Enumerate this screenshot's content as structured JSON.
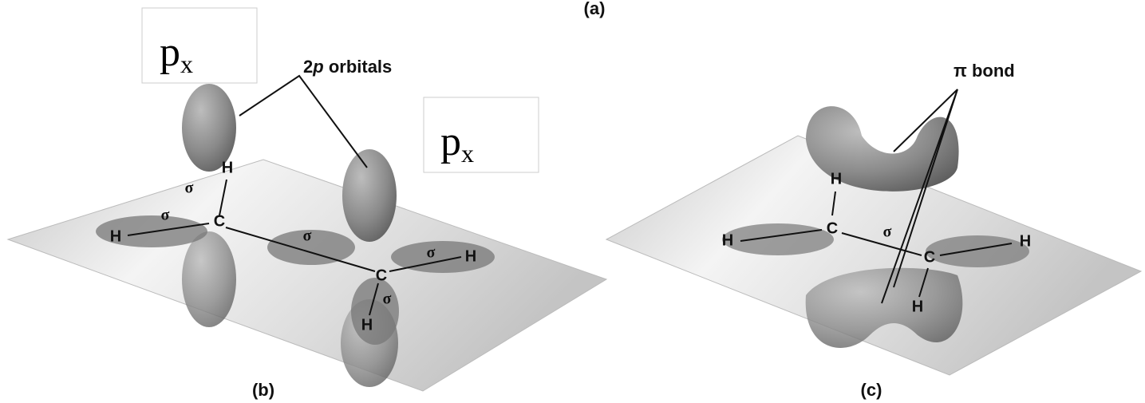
{
  "caption_a": "(a)",
  "boxes": [
    {
      "main": "p",
      "sub": "x"
    },
    {
      "main": "p",
      "sub": "x"
    }
  ],
  "panel_b": {
    "caption": "(b)",
    "label": {
      "number": "2",
      "italic": "p",
      "rest": " orbitals"
    },
    "atoms": [
      "H",
      "C",
      "H",
      "C",
      "H",
      "H"
    ],
    "sigma": [
      "σ",
      "σ",
      "σ",
      "σ",
      "σ"
    ]
  },
  "panel_c": {
    "caption": "(c)",
    "label": "π bond",
    "atoms": [
      "H",
      "C",
      "H",
      "C",
      "H",
      "H"
    ],
    "sigma": [
      "σ"
    ]
  }
}
